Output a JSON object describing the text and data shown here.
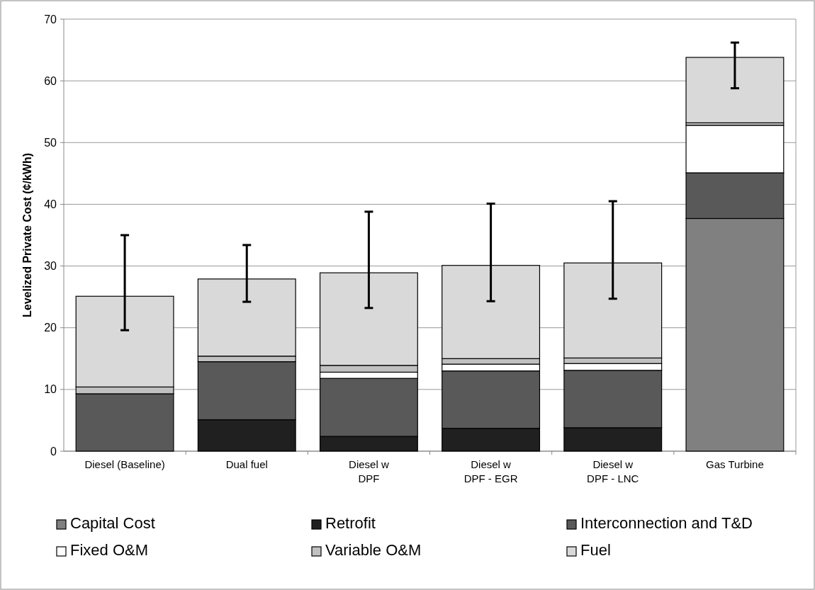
{
  "chart_data": {
    "type": "bar",
    "stacked": true,
    "ylabel": "Levelized Private Cost (¢/kWh)",
    "categories": [
      "Diesel (Baseline)",
      "Dual fuel",
      "Diesel w\nDPF",
      "Diesel w\nDPF - EGR",
      "Diesel w\nDPF - LNC",
      "Gas Turbine"
    ],
    "series": [
      {
        "name": "Capital Cost",
        "color": "#808080",
        "values": [
          0,
          0,
          0,
          0,
          0,
          37.7
        ]
      },
      {
        "name": "Retrofit",
        "color": "#202020",
        "values": [
          0,
          5.1,
          2.4,
          3.7,
          3.8,
          0
        ]
      },
      {
        "name": "Interconnection and T&D",
        "color": "#595959",
        "values": [
          9.3,
          9.4,
          9.4,
          9.3,
          9.3,
          7.4
        ]
      },
      {
        "name": "Fixed O&M",
        "color": "#ffffff",
        "values": [
          0,
          0,
          1.0,
          1.1,
          1.1,
          7.7
        ]
      },
      {
        "name": "Variable O&M",
        "color": "#c0c0c0",
        "values": [
          1.1,
          0.9,
          1.1,
          0.9,
          0.9,
          0.4
        ]
      },
      {
        "name": "Fuel",
        "color": "#d9d9d9",
        "values": [
          14.7,
          12.5,
          15.0,
          15.1,
          15.4,
          10.6
        ],
        "errors": [
          [
            19.6,
            35.0
          ],
          [
            24.2,
            33.4
          ],
          [
            23.2,
            38.8
          ],
          [
            24.3,
            40.1
          ],
          [
            24.7,
            40.5
          ],
          [
            58.8,
            66.2
          ]
        ]
      }
    ],
    "ylim": [
      0,
      70
    ],
    "yticks": [
      0,
      10,
      20,
      30,
      40,
      50,
      60,
      70
    ],
    "grid": "y",
    "legend": "bottom"
  }
}
